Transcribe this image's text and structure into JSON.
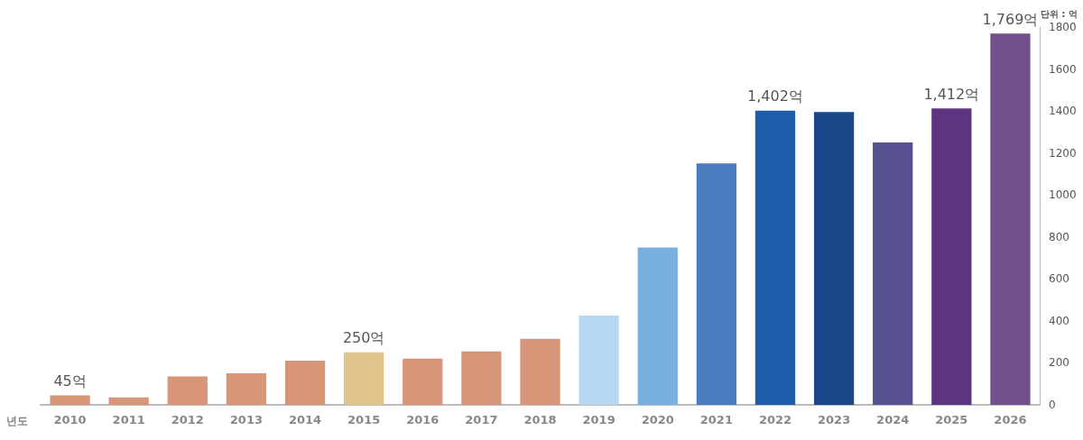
{
  "chart_data": {
    "type": "bar",
    "xlabel": "년도",
    "ylabel": "단위 : 억",
    "categories": [
      "2010",
      "2011",
      "2012",
      "2013",
      "2014",
      "2015",
      "2016",
      "2017",
      "2018",
      "2019",
      "2020",
      "2021",
      "2022",
      "2023",
      "2024",
      "2025",
      "2026"
    ],
    "values": [
      45,
      35,
      135,
      150,
      210,
      250,
      220,
      255,
      315,
      425,
      750,
      1150,
      1402,
      1395,
      1250,
      1412,
      1769
    ],
    "colors": [
      "#d69677",
      "#d69677",
      "#d69677",
      "#d69677",
      "#d69677",
      "#e0c48c",
      "#d69677",
      "#d69677",
      "#d69677",
      "#b5d8f2",
      "#78b1e0",
      "#4a7cc0",
      "#1f5dab",
      "#1a4788",
      "#55508e",
      "#5e3480",
      "#734f8c"
    ],
    "value_labels": [
      "45억",
      null,
      null,
      null,
      null,
      "250억",
      null,
      null,
      null,
      null,
      null,
      null,
      "1,402억",
      null,
      null,
      "1,412억",
      "1,769억"
    ],
    "ylim": [
      0,
      1800
    ],
    "yticks": [
      0,
      200,
      400,
      600,
      800,
      1000,
      1200,
      1400,
      1600,
      1800
    ],
    "grid": false
  }
}
